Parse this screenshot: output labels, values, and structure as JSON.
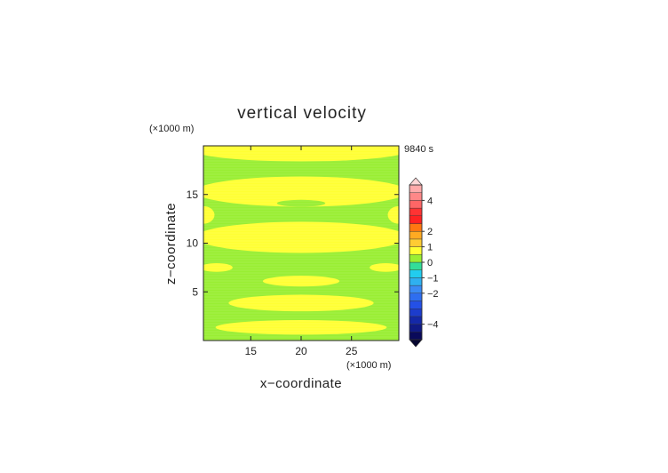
{
  "chart_data": {
    "type": "heatmap",
    "title": "vertical velocity",
    "time_label": "9840 s",
    "xlabel": "x−coordinate",
    "ylabel": "z−coordinate",
    "x_unit": "(×1000 m)",
    "y_unit": "(×1000 m)",
    "xlim": [
      10.3,
      29.7
    ],
    "ylim": [
      0,
      20
    ],
    "x_ticks": [
      15,
      20,
      25
    ],
    "y_ticks": [
      5,
      10,
      15
    ],
    "colors": {
      "background_field": "#99ee33",
      "positive_band": "#ffff33",
      "axis": "#222222"
    },
    "field_regions": [
      {
        "name": "yellow-band",
        "x": 20,
        "z": 1.35,
        "half_width": 8.5,
        "half_height": 0.75
      },
      {
        "name": "yellow-band",
        "x": 20,
        "z": 3.85,
        "half_width": 7.2,
        "half_height": 0.85
      },
      {
        "name": "yellow-band",
        "x": 20,
        "z": 6.1,
        "half_width": 3.8,
        "half_height": 0.55
      },
      {
        "name": "yellow-band",
        "x": 11.6,
        "z": 7.5,
        "half_width": 1.6,
        "half_height": 0.45
      },
      {
        "name": "yellow-band",
        "x": 28.4,
        "z": 7.5,
        "half_width": 1.6,
        "half_height": 0.45
      },
      {
        "name": "yellow-band",
        "x": 20,
        "z": 10.6,
        "half_width": 10.5,
        "half_height": 1.6
      },
      {
        "name": "yellow-band",
        "x": 20,
        "z": 15.3,
        "half_width": 10.5,
        "half_height": 1.55
      },
      {
        "name": "yellow-band",
        "x": 10.3,
        "z": 12.9,
        "half_width": 1.1,
        "half_height": 0.9
      },
      {
        "name": "yellow-band",
        "x": 29.7,
        "z": 12.9,
        "half_width": 1.1,
        "half_height": 0.9
      },
      {
        "name": "green-blob",
        "x": 20,
        "z": 14.1,
        "half_width": 2.4,
        "half_height": 0.35
      },
      {
        "name": "yellow-band",
        "x": 20,
        "z": 19.5,
        "half_width": 10.5,
        "half_height": 1.1
      }
    ],
    "colorbar": {
      "levels": [
        -5,
        -4.5,
        -4,
        -3.5,
        -3,
        -2.5,
        -2,
        -1.5,
        -1,
        -0.5,
        0,
        0.5,
        1,
        1.5,
        2,
        2.5,
        3,
        3.5,
        4,
        4.5,
        5
      ],
      "colors": [
        "#0a0a5a",
        "#101a85",
        "#1428a8",
        "#1c3ccc",
        "#2450e6",
        "#2e6ef0",
        "#3a8af5",
        "#2fb0f0",
        "#22ccee",
        "#33dd99",
        "#99ee33",
        "#ffff33",
        "#ffcc33",
        "#ffaa22",
        "#ff7711",
        "#ff2222",
        "#ff3333",
        "#ff6666",
        "#ff8888",
        "#ffaaaa"
      ],
      "tick_values": [
        4,
        2,
        1,
        0,
        -1,
        -2,
        -4
      ],
      "tick_labels": [
        "4",
        "2",
        "1",
        "0",
        "−1",
        "−2",
        "−4"
      ]
    }
  }
}
